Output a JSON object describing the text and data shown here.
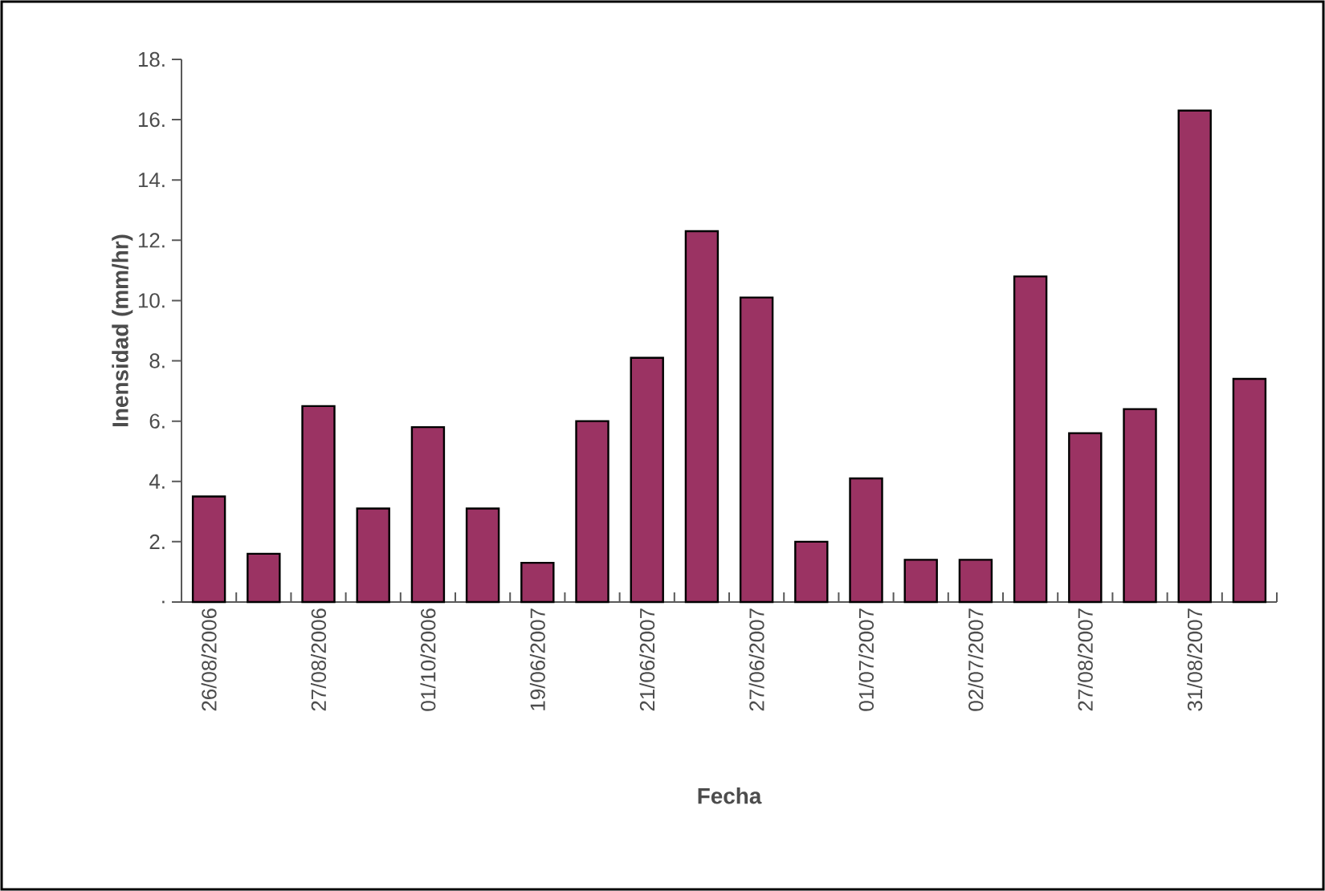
{
  "chart_data": {
    "type": "bar",
    "xlabel": "Fecha",
    "ylabel": "Inensidad (mm/hr)",
    "categories": [
      "26/08/2006",
      null,
      "27/08/2006",
      null,
      "01/10/2006",
      null,
      "19/06/2007",
      null,
      "21/06/2007",
      null,
      "27/06/2007",
      null,
      "01/07/2007",
      null,
      "02/07/2007",
      null,
      "27/08/2007",
      null,
      "31/08/2007",
      null
    ],
    "values": [
      3.5,
      1.6,
      6.5,
      3.1,
      5.8,
      3.1,
      1.3,
      6.0,
      8.1,
      12.3,
      10.1,
      2.0,
      4.1,
      1.4,
      1.4,
      10.8,
      5.6,
      6.4,
      16.3,
      7.4
    ],
    "color": "#9b3363",
    "ylim": [
      0,
      18
    ],
    "yticks": [
      {
        "value": 0,
        "label": "."
      },
      {
        "value": 2,
        "label": "2."
      },
      {
        "value": 4,
        "label": "4."
      },
      {
        "value": 6,
        "label": "6."
      },
      {
        "value": 8,
        "label": "8."
      },
      {
        "value": 10,
        "label": "10."
      },
      {
        "value": 12,
        "label": "12."
      },
      {
        "value": 14,
        "label": "14."
      },
      {
        "value": 16,
        "label": "16."
      },
      {
        "value": 18,
        "label": "18."
      }
    ]
  }
}
